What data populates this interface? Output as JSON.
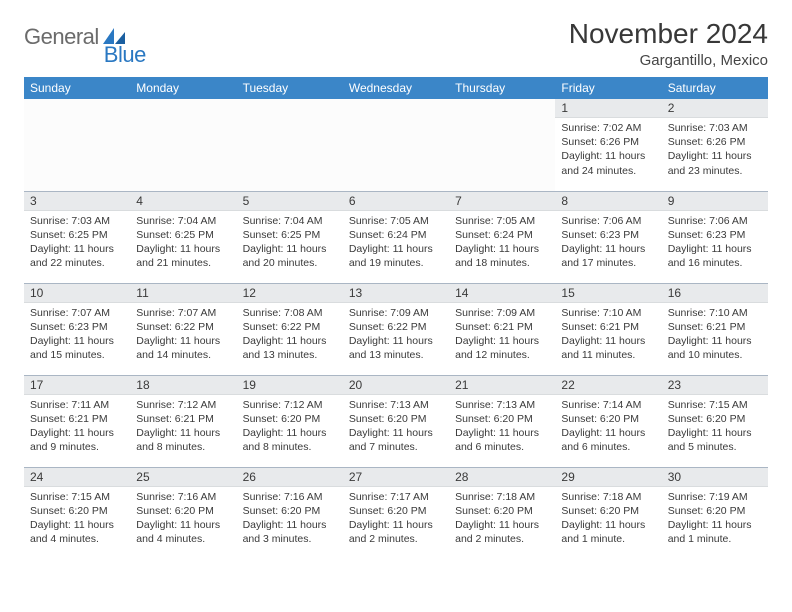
{
  "brand": {
    "word1": "General",
    "word2": "Blue"
  },
  "title": "November 2024",
  "location": "Gargantillo, Mexico",
  "colors": {
    "header_bg": "#3b86c8",
    "header_text": "#ffffff",
    "daynum_bg": "#e8eaec",
    "rule": "#aab6c4",
    "logo_gray": "#6b6b6b",
    "logo_blue": "#2a78c2"
  },
  "weekdays": [
    "Sunday",
    "Monday",
    "Tuesday",
    "Wednesday",
    "Thursday",
    "Friday",
    "Saturday"
  ],
  "weeks": [
    [
      {
        "blank": true
      },
      {
        "blank": true
      },
      {
        "blank": true
      },
      {
        "blank": true
      },
      {
        "blank": true
      },
      {
        "n": "1",
        "sunrise": "7:02 AM",
        "sunset": "6:26 PM",
        "daylight": "11 hours and 24 minutes."
      },
      {
        "n": "2",
        "sunrise": "7:03 AM",
        "sunset": "6:26 PM",
        "daylight": "11 hours and 23 minutes."
      }
    ],
    [
      {
        "n": "3",
        "sunrise": "7:03 AM",
        "sunset": "6:25 PM",
        "daylight": "11 hours and 22 minutes."
      },
      {
        "n": "4",
        "sunrise": "7:04 AM",
        "sunset": "6:25 PM",
        "daylight": "11 hours and 21 minutes."
      },
      {
        "n": "5",
        "sunrise": "7:04 AM",
        "sunset": "6:25 PM",
        "daylight": "11 hours and 20 minutes."
      },
      {
        "n": "6",
        "sunrise": "7:05 AM",
        "sunset": "6:24 PM",
        "daylight": "11 hours and 19 minutes."
      },
      {
        "n": "7",
        "sunrise": "7:05 AM",
        "sunset": "6:24 PM",
        "daylight": "11 hours and 18 minutes."
      },
      {
        "n": "8",
        "sunrise": "7:06 AM",
        "sunset": "6:23 PM",
        "daylight": "11 hours and 17 minutes."
      },
      {
        "n": "9",
        "sunrise": "7:06 AM",
        "sunset": "6:23 PM",
        "daylight": "11 hours and 16 minutes."
      }
    ],
    [
      {
        "n": "10",
        "sunrise": "7:07 AM",
        "sunset": "6:23 PM",
        "daylight": "11 hours and 15 minutes."
      },
      {
        "n": "11",
        "sunrise": "7:07 AM",
        "sunset": "6:22 PM",
        "daylight": "11 hours and 14 minutes."
      },
      {
        "n": "12",
        "sunrise": "7:08 AM",
        "sunset": "6:22 PM",
        "daylight": "11 hours and 13 minutes."
      },
      {
        "n": "13",
        "sunrise": "7:09 AM",
        "sunset": "6:22 PM",
        "daylight": "11 hours and 13 minutes."
      },
      {
        "n": "14",
        "sunrise": "7:09 AM",
        "sunset": "6:21 PM",
        "daylight": "11 hours and 12 minutes."
      },
      {
        "n": "15",
        "sunrise": "7:10 AM",
        "sunset": "6:21 PM",
        "daylight": "11 hours and 11 minutes."
      },
      {
        "n": "16",
        "sunrise": "7:10 AM",
        "sunset": "6:21 PM",
        "daylight": "11 hours and 10 minutes."
      }
    ],
    [
      {
        "n": "17",
        "sunrise": "7:11 AM",
        "sunset": "6:21 PM",
        "daylight": "11 hours and 9 minutes."
      },
      {
        "n": "18",
        "sunrise": "7:12 AM",
        "sunset": "6:21 PM",
        "daylight": "11 hours and 8 minutes."
      },
      {
        "n": "19",
        "sunrise": "7:12 AM",
        "sunset": "6:20 PM",
        "daylight": "11 hours and 8 minutes."
      },
      {
        "n": "20",
        "sunrise": "7:13 AM",
        "sunset": "6:20 PM",
        "daylight": "11 hours and 7 minutes."
      },
      {
        "n": "21",
        "sunrise": "7:13 AM",
        "sunset": "6:20 PM",
        "daylight": "11 hours and 6 minutes."
      },
      {
        "n": "22",
        "sunrise": "7:14 AM",
        "sunset": "6:20 PM",
        "daylight": "11 hours and 6 minutes."
      },
      {
        "n": "23",
        "sunrise": "7:15 AM",
        "sunset": "6:20 PM",
        "daylight": "11 hours and 5 minutes."
      }
    ],
    [
      {
        "n": "24",
        "sunrise": "7:15 AM",
        "sunset": "6:20 PM",
        "daylight": "11 hours and 4 minutes."
      },
      {
        "n": "25",
        "sunrise": "7:16 AM",
        "sunset": "6:20 PM",
        "daylight": "11 hours and 4 minutes."
      },
      {
        "n": "26",
        "sunrise": "7:16 AM",
        "sunset": "6:20 PM",
        "daylight": "11 hours and 3 minutes."
      },
      {
        "n": "27",
        "sunrise": "7:17 AM",
        "sunset": "6:20 PM",
        "daylight": "11 hours and 2 minutes."
      },
      {
        "n": "28",
        "sunrise": "7:18 AM",
        "sunset": "6:20 PM",
        "daylight": "11 hours and 2 minutes."
      },
      {
        "n": "29",
        "sunrise": "7:18 AM",
        "sunset": "6:20 PM",
        "daylight": "11 hours and 1 minute."
      },
      {
        "n": "30",
        "sunrise": "7:19 AM",
        "sunset": "6:20 PM",
        "daylight": "11 hours and 1 minute."
      }
    ]
  ],
  "labels": {
    "sunrise": "Sunrise: ",
    "sunset": "Sunset: ",
    "daylight": "Daylight: "
  }
}
